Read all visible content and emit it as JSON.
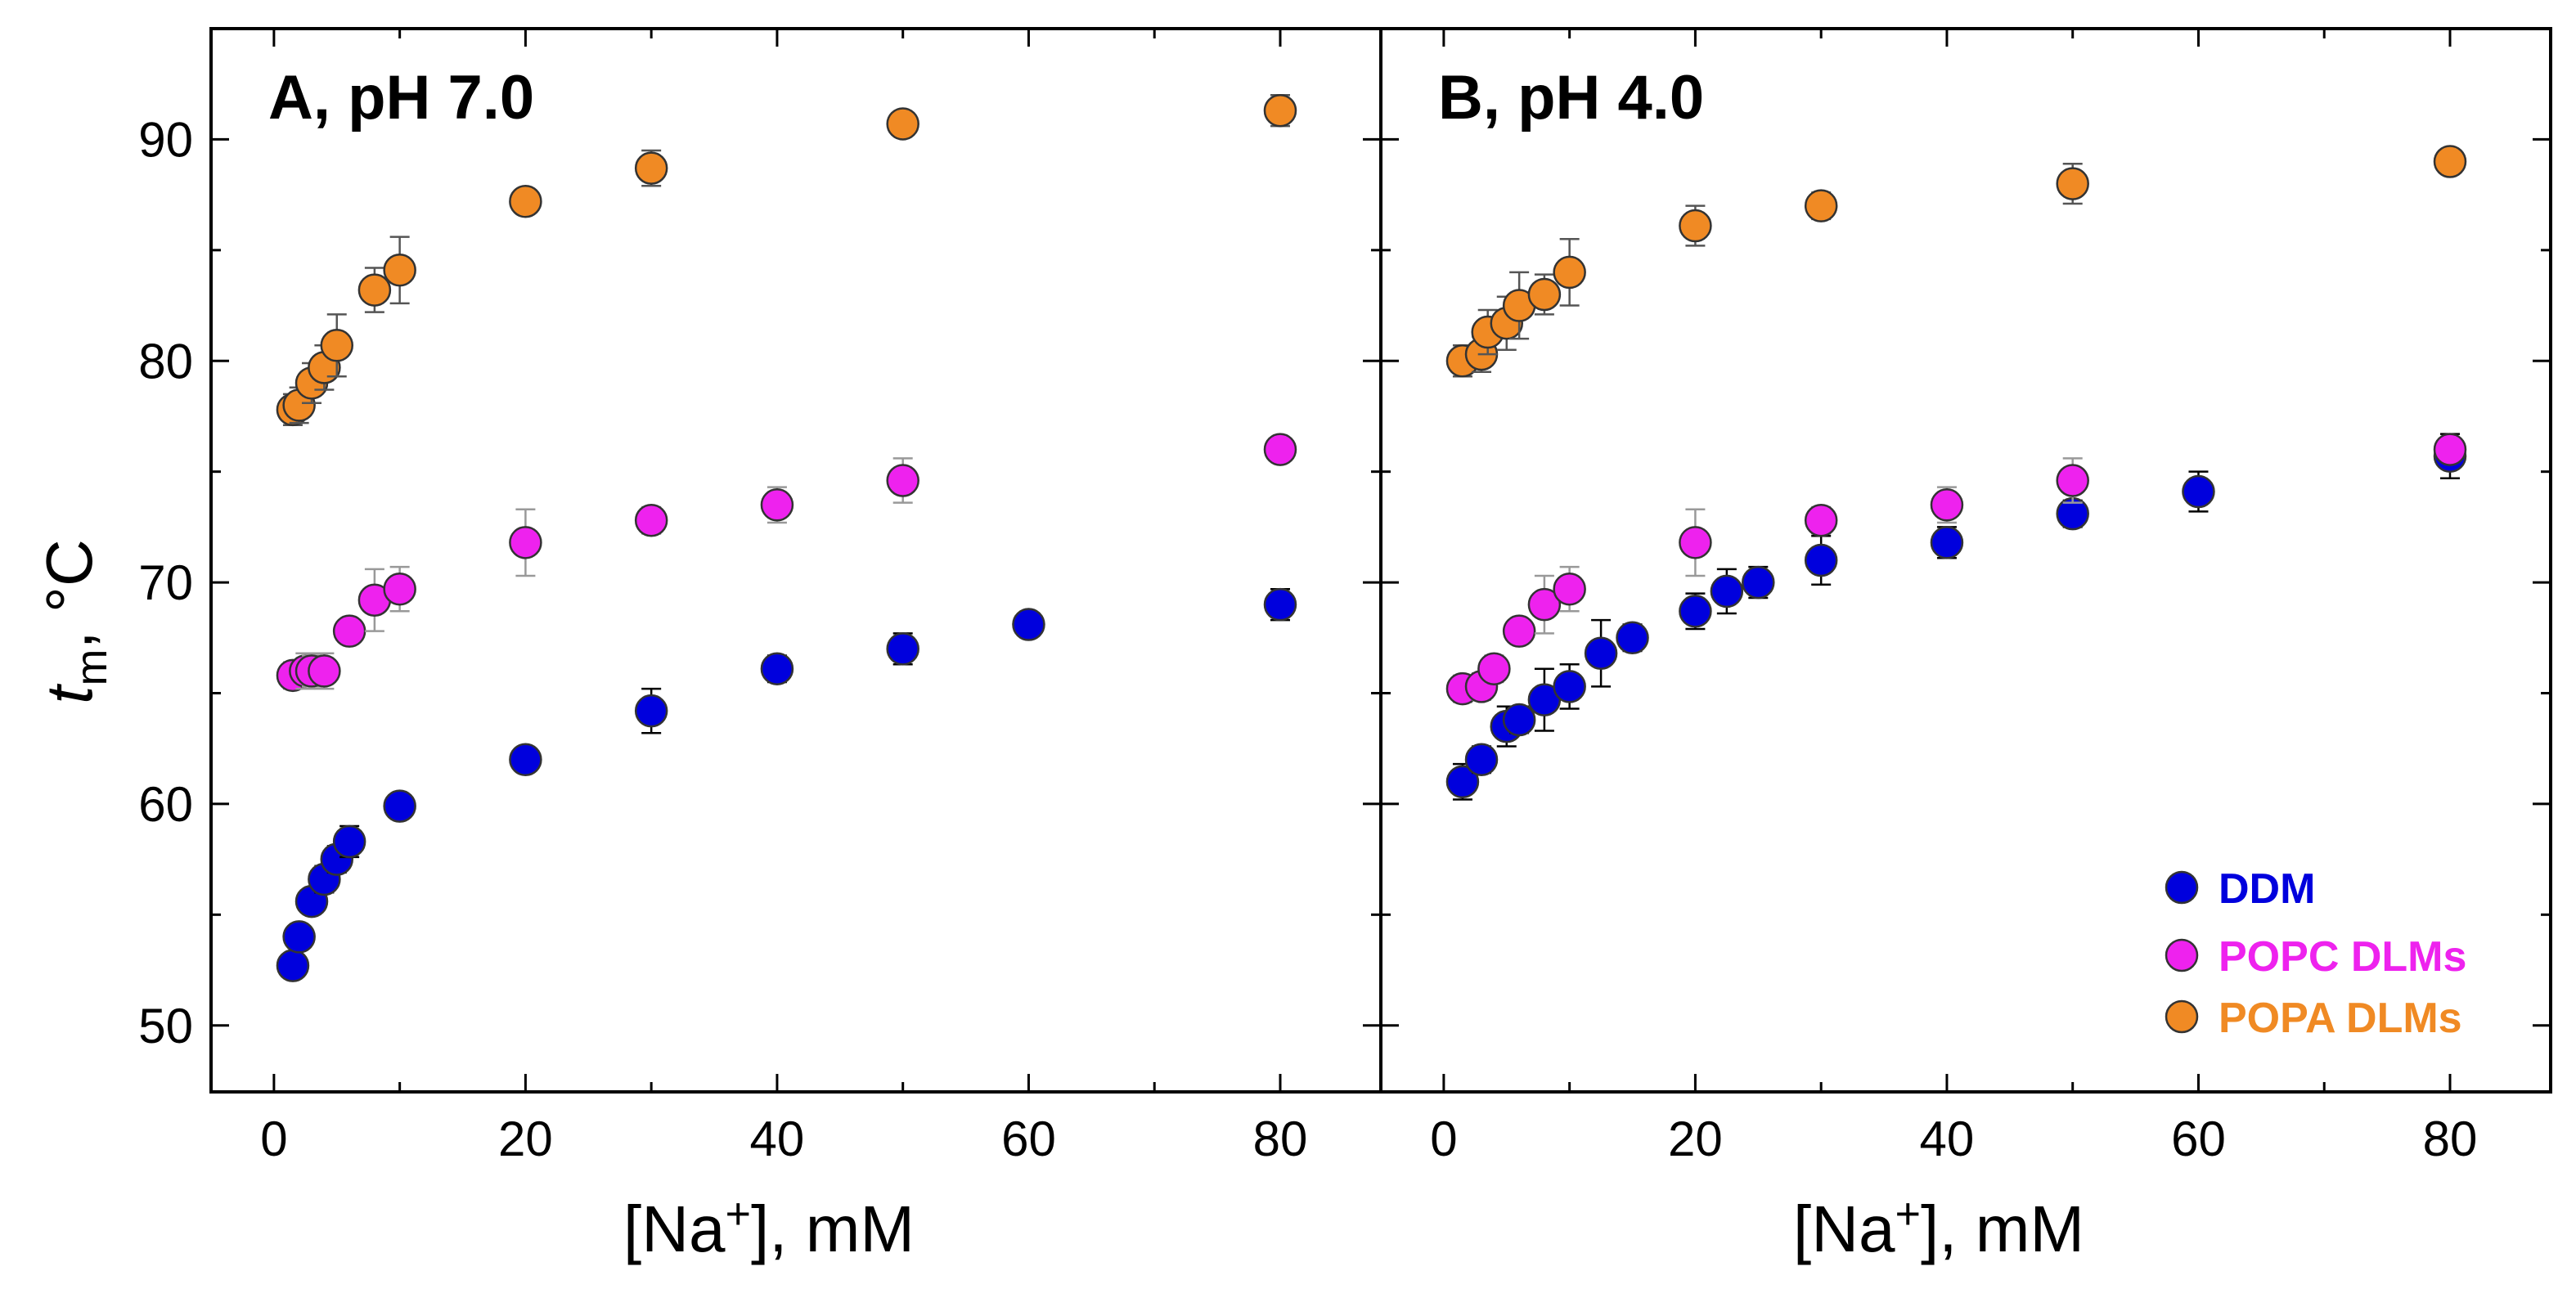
{
  "chart_data": {
    "type": "scatter",
    "ylabel_main": "t",
    "ylabel_sub": "m",
    "ylabel_suffix": ", °C",
    "xlabel_prefix": "[Na",
    "xlabel_sup": "+",
    "xlabel_suffix": "], mM",
    "xlim": [
      -5,
      88
    ],
    "ylim": [
      47,
      95
    ],
    "x_ticks": [
      0,
      20,
      40,
      60,
      80
    ],
    "x_minor_ticks": [
      10,
      30,
      50,
      70
    ],
    "y_ticks": [
      50,
      60,
      70,
      80,
      90
    ],
    "y_minor_ticks": [
      55,
      65,
      75,
      85
    ],
    "legend": {
      "position": "bottom-right",
      "entries": [
        {
          "label": "DDM",
          "color": "#0000dd"
        },
        {
          "label": "POPC DLMs",
          "color": "#ee22ee"
        },
        {
          "label": "POPA DLMs",
          "color": "#f08a24"
        }
      ]
    },
    "panels": [
      {
        "title": "A, pH 7.0",
        "series": [
          {
            "name": "DDM",
            "color": "#0000dd",
            "errcolor": "#000000",
            "x": [
              1.5,
              2,
              3,
              4,
              5,
              6,
              10,
              20,
              30,
              40,
              50,
              60,
              80
            ],
            "y": [
              52.7,
              54,
              55.6,
              56.6,
              57.5,
              58.3,
              59.9,
              62,
              64.2,
              66.1,
              67,
              68.1,
              69
            ],
            "err": [
              0.4,
              0.5,
              0.5,
              0.6,
              0.6,
              0.7,
              0.4,
              0.5,
              1.0,
              0.6,
              0.7,
              0.5,
              0.7
            ]
          },
          {
            "name": "POPC DLMs",
            "color": "#ee22ee",
            "errcolor": "#999999",
            "x": [
              1.5,
              2.5,
              3,
              4,
              6,
              8,
              10,
              20,
              30,
              40,
              50,
              80
            ],
            "y": [
              65.8,
              66,
              66,
              66,
              67.8,
              69.2,
              69.7,
              71.8,
              72.8,
              73.5,
              74.6,
              76
            ],
            "err": [
              0.6,
              0.8,
              0.7,
              0.8,
              0.5,
              1.4,
              1.0,
              1.5,
              0.6,
              0.8,
              1.0,
              0.4
            ]
          },
          {
            "name": "POPA DLMs",
            "color": "#f08a24",
            "errcolor": "#555555",
            "x": [
              1.5,
              2,
              3,
              4,
              5,
              8,
              10,
              20,
              30,
              50,
              80
            ],
            "y": [
              77.8,
              78,
              79,
              79.7,
              80.7,
              83.2,
              84.1,
              87.2,
              88.7,
              90.7,
              91.3
            ],
            "err": [
              0.7,
              0.8,
              0.9,
              1.0,
              1.4,
              1.0,
              1.5,
              0.5,
              0.8,
              0.4,
              0.7
            ]
          }
        ]
      },
      {
        "title": "B, pH 4.0",
        "series": [
          {
            "name": "DDM",
            "color": "#0000dd",
            "errcolor": "#000000",
            "x": [
              1.5,
              3,
              5,
              6,
              8,
              10,
              12.5,
              15,
              20,
              22.5,
              25,
              30,
              40,
              50,
              60,
              80
            ],
            "y": [
              61,
              62,
              63.5,
              63.8,
              64.7,
              65.3,
              66.8,
              67.5,
              68.7,
              69.6,
              70,
              71,
              71.8,
              73.1,
              74.1,
              75.7
            ],
            "err": [
              0.8,
              0.6,
              0.9,
              0.6,
              1.4,
              1.0,
              1.5,
              0.6,
              0.8,
              1.0,
              0.7,
              1.1,
              0.7,
              0.6,
              0.9,
              1.0
            ]
          },
          {
            "name": "POPC DLMs",
            "color": "#ee22ee",
            "errcolor": "#999999",
            "x": [
              1.5,
              3,
              4,
              6,
              8,
              10,
              20,
              30,
              40,
              50,
              80
            ],
            "y": [
              65.2,
              65.3,
              66.1,
              67.8,
              69,
              69.7,
              71.8,
              72.8,
              73.5,
              74.6,
              76
            ],
            "err": [
              0.6,
              0.6,
              0.6,
              0.5,
              1.3,
              1.0,
              1.5,
              0.6,
              0.8,
              1.0,
              0.4
            ]
          },
          {
            "name": "POPA DLMs",
            "color": "#f08a24",
            "errcolor": "#555555",
            "x": [
              1.5,
              3,
              3.5,
              5,
              6,
              8,
              10,
              20,
              30,
              50,
              80
            ],
            "y": [
              80,
              80.3,
              81.3,
              81.7,
              82.5,
              83,
              84,
              86.1,
              87,
              88,
              89
            ],
            "err": [
              0.7,
              0.8,
              1.0,
              1.2,
              1.5,
              0.9,
              1.5,
              0.9,
              0.6,
              0.9,
              0.4
            ]
          }
        ]
      }
    ]
  }
}
